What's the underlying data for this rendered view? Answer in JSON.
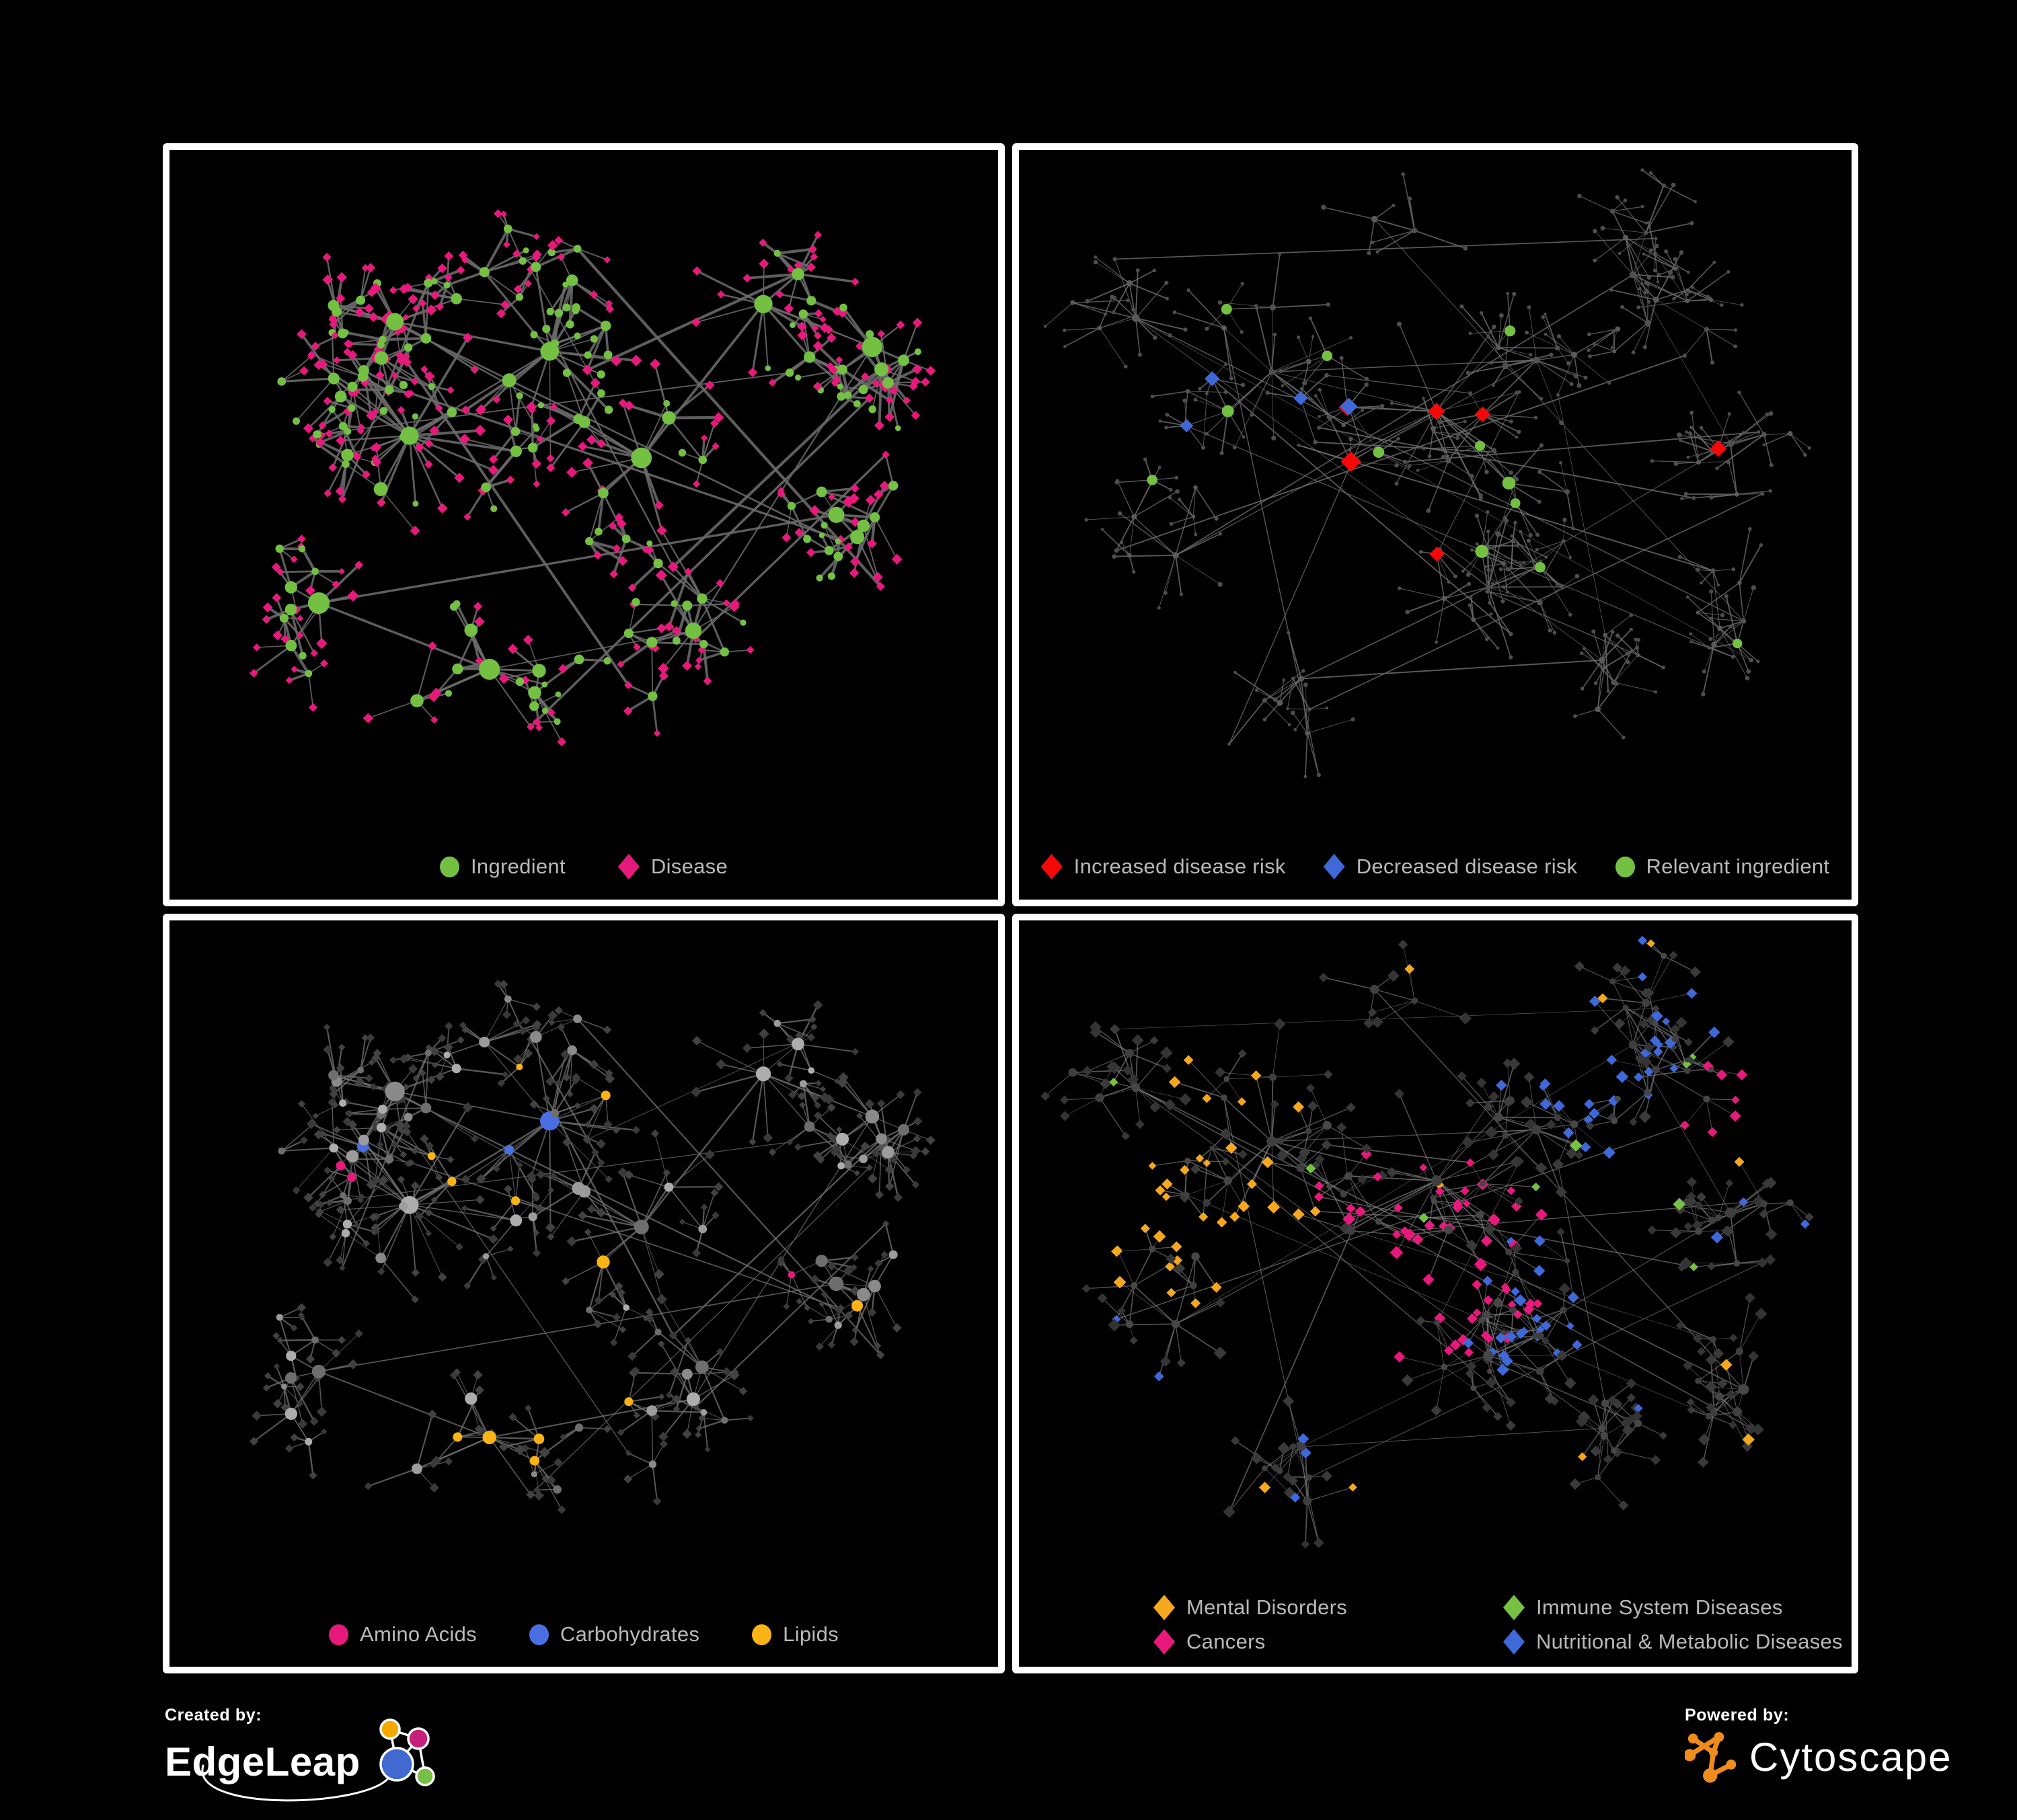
{
  "page": {
    "background": "#000000",
    "panel_border": "#ffffff",
    "legend_text_color": "#b9b9b9"
  },
  "panels": [
    {
      "id": "ingredient-disease",
      "legend": [
        {
          "label": "Ingredient",
          "color": "#74C043",
          "shape": "circle"
        },
        {
          "label": "Disease",
          "color": "#E8197D",
          "shape": "diamond"
        }
      ]
    },
    {
      "id": "disease-risk",
      "legend": [
        {
          "label": "Increased disease risk",
          "color": "#F50808",
          "shape": "diamond"
        },
        {
          "label": "Decreased disease risk",
          "color": "#3F68D9",
          "shape": "diamond"
        },
        {
          "label": "Relevant ingredient",
          "color": "#74C043",
          "shape": "circle"
        }
      ]
    },
    {
      "id": "nutrient-classes",
      "legend": [
        {
          "label": "Amino Acids",
          "color": "#E8197D",
          "shape": "circle"
        },
        {
          "label": "Carbohydrates",
          "color": "#4A6FE3",
          "shape": "circle"
        },
        {
          "label": "Lipids",
          "color": "#FCB316",
          "shape": "circle"
        }
      ]
    },
    {
      "id": "disease-classes",
      "legend": [
        {
          "label": "Mental Disorders",
          "color": "#F5A81E",
          "shape": "diamond"
        },
        {
          "label": "Immune System Diseases",
          "color": "#76C043",
          "shape": "diamond"
        },
        {
          "label": "Cancers",
          "color": "#E8197D",
          "shape": "diamond"
        },
        {
          "label": "Nutritional & Metabolic Diseases",
          "color": "#3F68D9",
          "shape": "diamond"
        }
      ]
    }
  ],
  "footer": {
    "created_by_label": "Created by:",
    "created_by_brand": "EdgeLeap",
    "powered_by_label": "Powered by:",
    "powered_by_brand": "Cytoscape",
    "edgeleap_logo_colors": {
      "orange": "#F5A800",
      "pink": "#C4207A",
      "blue": "#4169D0",
      "green": "#76C043"
    },
    "cytoscape_logo_color": "#EF8C1E"
  },
  "networks": {
    "layouts": {
      "A": {
        "seed": 1337,
        "extra": 14,
        "centers": [
          [
            0.3,
            0.44,
            1.25
          ],
          [
            0.47,
            0.3,
            1.15
          ],
          [
            0.26,
            0.24,
            0.8
          ],
          [
            0.57,
            0.47,
            0.95
          ],
          [
            0.72,
            0.22,
            0.85
          ],
          [
            0.86,
            0.3,
            0.55
          ],
          [
            0.62,
            0.7,
            0.7
          ],
          [
            0.4,
            0.78,
            0.9
          ],
          [
            0.17,
            0.68,
            0.65
          ],
          [
            0.79,
            0.56,
            0.5
          ]
        ]
      },
      "B": {
        "seed": 4242,
        "extra": 18,
        "centers": [
          [
            0.5,
            0.4,
            1.2
          ],
          [
            0.3,
            0.35,
            1.0
          ],
          [
            0.63,
            0.3,
            0.85
          ],
          [
            0.2,
            0.6,
            0.8
          ],
          [
            0.75,
            0.2,
            0.7
          ],
          [
            0.85,
            0.45,
            0.6
          ],
          [
            0.55,
            0.65,
            0.8
          ],
          [
            0.35,
            0.78,
            0.7
          ],
          [
            0.7,
            0.78,
            0.6
          ],
          [
            0.15,
            0.25,
            0.7
          ],
          [
            0.88,
            0.72,
            0.5
          ],
          [
            0.42,
            0.12,
            0.6
          ]
        ]
      }
    },
    "panels": [
      {
        "layout": "A",
        "edge": {
          "color": "#6B6B6B",
          "w": 2.6,
          "op": 0.88
        },
        "internal": {
          "shape": "circle",
          "colors": [
            "#74C043"
          ],
          "sizes": [
            13,
            8.5,
            6,
            5
          ]
        },
        "leaf": {
          "shape": "diamond",
          "colors": [
            "#E8197D"
          ],
          "sizes": [
            7,
            7,
            6.5,
            6
          ],
          "alt_prob": 0.15,
          "alt": {
            "shape": "circle",
            "color": "#74C043",
            "size": 5
          }
        },
        "zones": [
          {
            "on": "leaf",
            "c": [
              0.47,
              0.3
            ],
            "r": 0.07,
            "p": 0.8,
            "shape": "circle",
            "color": "#74C043",
            "size": 6
          }
        ]
      },
      {
        "layout": "B",
        "edge": {
          "color": "#6F6F6F",
          "w": 1.2,
          "op": 0.8
        },
        "internal": {
          "shape": "circle",
          "colors": [
            "#5A5A5A",
            "#515151"
          ],
          "sizes": [
            4.5,
            3.8,
            3.2,
            3
          ]
        },
        "leaf": {
          "shape": "circle",
          "colors": [
            "#4E4E4E"
          ],
          "sizes": [
            3,
            3,
            2.8,
            2.6
          ]
        },
        "zones": [
          {
            "on": "internal",
            "c": [
              0.45,
              0.36
            ],
            "r": 0.2,
            "p": 0.3,
            "shape": "diamond",
            "color": "#F50808",
            "size": 13.5
          },
          {
            "on": "internal",
            "c": [
              0.62,
              0.52
            ],
            "r": 0.45,
            "p": 0.05,
            "shape": "diamond",
            "color": "#F50808",
            "size": 12
          },
          {
            "on": "internal",
            "c": [
              0.93,
              0.26
            ],
            "r": 0.05,
            "p": 0.9,
            "shape": "diamond",
            "color": "#3F68D9",
            "size": 12
          },
          {
            "on": "internal",
            "c": [
              0.3,
              0.42
            ],
            "r": 0.11,
            "p": 0.3,
            "shape": "diamond",
            "color": "#3F68D9",
            "size": 11.5
          },
          {
            "on": "internal",
            "c": [
              0.42,
              0.44
            ],
            "r": 0.2,
            "p": 0.12,
            "shape": "diamond",
            "color": "#BDBDBD",
            "size": 11
          },
          {
            "on": "internal",
            "c": [
              0.56,
              0.54
            ],
            "r": 0.05,
            "p": 0.85,
            "shape": "circle",
            "color": "#74C043",
            "size": 8.5
          },
          {
            "on": "internal",
            "c": [
              0.4,
              0.38
            ],
            "r": 0.28,
            "p": 0.3,
            "shape": "circle",
            "color": "#74C043",
            "size": 8.5
          },
          {
            "on": "internal",
            "c": [
              0.55,
              0.55
            ],
            "r": 0.6,
            "p": 0.035,
            "shape": "circle",
            "color": "#74C043",
            "size": 7.5
          }
        ]
      },
      {
        "layout": "A",
        "edge": {
          "color": "#6E6E6E",
          "w": 1.5,
          "op": 0.8
        },
        "internal": {
          "shape": "circle",
          "colors": [
            "#9C9C9C",
            "#8A8A8A",
            "#ADADAD",
            "#6E6E6E"
          ],
          "sizes": [
            12,
            8,
            5.5,
            4.5
          ]
        },
        "leaf": {
          "shape": "diamond",
          "colors": [
            "#3A3A3A",
            "#424242"
          ],
          "sizes": [
            6.5,
            6.5,
            6,
            5.5
          ]
        },
        "zones": [
          {
            "on": "internal",
            "c": [
              0.47,
              0.3
            ],
            "r": 0.13,
            "p": 0.62,
            "shape": "circle",
            "color": "#FCB316",
            "size": 0
          },
          {
            "on": "internal",
            "c": [
              0.4,
              0.78
            ],
            "r": 0.06,
            "p": 0.85,
            "shape": "circle",
            "color": "#FCB316",
            "size": 0
          },
          {
            "on": "internal",
            "c": [
              0.45,
              0.32
            ],
            "r": 0.09,
            "p": 0.3,
            "shape": "circle",
            "color": "#4A6FE3",
            "size": 0
          },
          {
            "on": "internal",
            "c": [
              0.6,
              0.52
            ],
            "r": 0.35,
            "p": 0.1,
            "shape": "circle",
            "color": "#FCB316",
            "size": 0
          },
          {
            "on": "internal",
            "c": [
              0.5,
              0.5
            ],
            "r": 0.65,
            "p": 0.05,
            "shape": "circle",
            "color": "#E8197D",
            "size": 0
          },
          {
            "on": "internal",
            "c": [
              0.5,
              0.5
            ],
            "r": 0.65,
            "p": 0.02,
            "shape": "circle",
            "color": "#4A6FE3",
            "size": 0
          }
        ]
      },
      {
        "layout": "B",
        "edge": {
          "color": "#7A7A7A",
          "w": 1.1,
          "op": 0.7
        },
        "internal": {
          "shape": "circle",
          "colors": [
            "#3F3F3F",
            "#474747"
          ],
          "sizes": [
            6.5,
            5.5,
            4.5,
            4
          ]
        },
        "leaf": {
          "shape": "diamond",
          "colors": [
            "#3A3A3A",
            "#343434"
          ],
          "sizes": [
            8,
            8,
            7.5,
            7
          ]
        },
        "zones": [
          {
            "on": "leaf",
            "c": [
              0.22,
              0.47
            ],
            "r": 0.15,
            "p": 0.85,
            "shape": "diamond",
            "color": "#F5A81E",
            "size": 0
          },
          {
            "on": "leaf",
            "c": [
              0.33,
              0.16
            ],
            "r": 0.18,
            "p": 0.28,
            "shape": "diamond",
            "color": "#F5A81E",
            "size": 0
          },
          {
            "on": "leaf",
            "c": [
              0.48,
              0.5
            ],
            "r": 0.17,
            "p": 0.6,
            "shape": "diamond",
            "color": "#E8197D",
            "size": 0
          },
          {
            "on": "leaf",
            "c": [
              0.86,
              0.28
            ],
            "r": 0.08,
            "p": 0.55,
            "shape": "diamond",
            "color": "#E8197D",
            "size": 0
          },
          {
            "on": "leaf",
            "c": [
              0.63,
              0.58
            ],
            "r": 0.11,
            "p": 0.7,
            "shape": "diamond",
            "color": "#3F68D9",
            "size": 0
          },
          {
            "on": "leaf",
            "c": [
              0.78,
              0.22
            ],
            "r": 0.16,
            "p": 0.4,
            "shape": "diamond",
            "color": "#3F68D9",
            "size": 0
          },
          {
            "on": "leaf",
            "c": [
              0.32,
              0.78
            ],
            "r": 0.2,
            "p": 0.16,
            "shape": "diamond",
            "color": "#3F68D9",
            "size": 0
          },
          {
            "on": "leaf",
            "c": [
              0.5,
              0.5
            ],
            "r": 0.7,
            "p": 0.05,
            "shape": "diamond",
            "color": "#3F68D9",
            "size": 0
          },
          {
            "on": "leaf",
            "c": [
              0.5,
              0.5
            ],
            "r": 0.7,
            "p": 0.03,
            "shape": "diamond",
            "color": "#76C043",
            "size": 0
          },
          {
            "on": "leaf",
            "c": [
              0.5,
              0.5
            ],
            "r": 0.7,
            "p": 0.04,
            "shape": "diamond",
            "color": "#F5A81E",
            "size": 0
          }
        ]
      }
    ]
  }
}
